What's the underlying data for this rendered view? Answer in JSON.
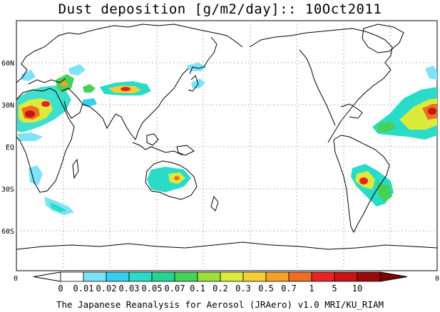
{
  "title": "Dust deposition [g/m2/day]:: 10Oct2011",
  "footer": "The Japanese Reanalysis for Aerosol (JRAero) v1.0 MRI/KU_RIAM",
  "lat_labels": [
    "60N",
    "30N",
    "EQ",
    "30S",
    "60S"
  ],
  "side_labels": {
    "left": "0",
    "right": "0"
  },
  "colorbar": {
    "levels": [
      "0",
      "0.01",
      "0.02",
      "0.03",
      "0.05",
      "0.07",
      "0.1",
      "0.2",
      "0.3",
      "0.5",
      "0.7",
      "1",
      "5",
      "10"
    ],
    "colors": [
      "#ffffff",
      "#ffffff",
      "#7fe3f7",
      "#37cdf0",
      "#2adcc8",
      "#28d292",
      "#46d25a",
      "#9de03c",
      "#dcea3c",
      "#f5cd37",
      "#f5a028",
      "#f06e23",
      "#e82323",
      "#c81414",
      "#9b0a0a",
      "#7d0000"
    ]
  },
  "colors": {
    "coast": "#000000",
    "grid": "#b4b4b4"
  }
}
